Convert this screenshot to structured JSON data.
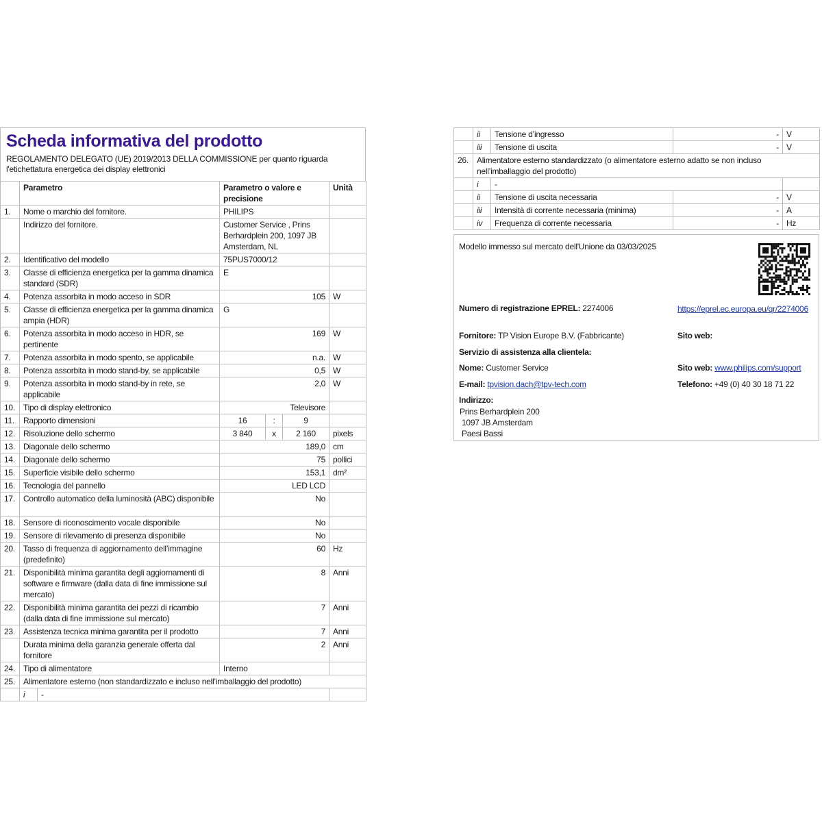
{
  "title": "Scheda informativa del prodotto",
  "subtitle": "REGOLAMENTO DELEGATO (UE) 2019/2013 DELLA COMMISSIONE per quanto riguarda l'etichettatura energetica dei display elettronici",
  "colors": {
    "title": "#3a1a8c",
    "link": "#1f3a9a",
    "border": "#bdbdbd"
  },
  "table_header": {
    "param": "Parametro",
    "value": "Parametro o valore e precisione",
    "unit": "Unità"
  },
  "rows": [
    {
      "n": "1.",
      "p": "Nome o marchio del fornitore.",
      "v": "PHILIPS",
      "u": "",
      "align": "l"
    },
    {
      "n": "",
      "p": "Indirizzo del fornitore.",
      "v": "Customer Service , Prins Berhardplein 200, 1097 JB Amsterdam, NL",
      "u": "",
      "align": "l"
    },
    {
      "n": "2.",
      "p": "Identificativo del modello",
      "v": "75PUS7000/12",
      "u": "",
      "align": "l"
    },
    {
      "n": "3.",
      "p": "Classe di efficienza energetica per la gamma dinamica standard (SDR)",
      "v": "E",
      "u": "",
      "align": "l"
    },
    {
      "n": "4.",
      "p": "Potenza assorbita in modo acceso in SDR",
      "v": "105",
      "u": "W",
      "align": "r"
    },
    {
      "n": "5.",
      "p": "Classe di efficienza energetica per la gamma dinamica ampia (HDR)",
      "v": "G",
      "u": "",
      "align": "l"
    },
    {
      "n": "6.",
      "p": "Potenza assorbita in modo acceso in HDR, se pertinente",
      "v": "169",
      "u": "W",
      "align": "r"
    },
    {
      "n": "7.",
      "p": "Potenza assorbita in modo spento, se applicabile",
      "v": "n.a.",
      "u": "W",
      "align": "r"
    },
    {
      "n": "8.",
      "p": "Potenza assorbita in modo stand-by, se applicabile",
      "v": "0,5",
      "u": "W",
      "align": "r"
    },
    {
      "n": "9.",
      "p": "Potenza assorbita in modo stand-by in rete, se applicabile",
      "v": "2,0",
      "u": "W",
      "align": "r"
    },
    {
      "n": "10.",
      "p": "Tipo di display elettronico",
      "v": "Televisore",
      "u": "",
      "align": "r"
    },
    {
      "n": "11.",
      "p": "Rapporto dimensioni",
      "v": [
        "16",
        ":",
        "9"
      ],
      "u": "",
      "align": "split"
    },
    {
      "n": "12.",
      "p": "Risoluzione dello schermo",
      "v": [
        "3 840",
        "x",
        "2 160"
      ],
      "u": "pixels",
      "align": "split"
    },
    {
      "n": "13.",
      "p": "Diagonale dello schermo",
      "v": "189,0",
      "u": "cm",
      "align": "r"
    },
    {
      "n": "14.",
      "p": "Diagonale dello schermo",
      "v": "75",
      "u": "pollici",
      "align": "r"
    },
    {
      "n": "15.",
      "p": "Superficie visibile dello schermo",
      "v": "153,1",
      "u": "dm²",
      "align": "r"
    },
    {
      "n": "16.",
      "p": "Tecnologia del pannello",
      "v": "LED LCD",
      "u": "",
      "align": "r"
    },
    {
      "n": "17.",
      "p": "Controllo automatico della luminosità (ABC) disponibile",
      "v": "No",
      "u": "",
      "align": "r"
    },
    {
      "n": "18.",
      "p": "Sensore di riconoscimento vocale disponibile",
      "v": "No",
      "u": "",
      "align": "r"
    },
    {
      "n": "19.",
      "p": "Sensore di rilevamento di presenza disponibile",
      "v": "No",
      "u": "",
      "align": "r"
    },
    {
      "n": "20.",
      "p": "Tasso di frequenza di aggiornamento dell’immagine (predefinito)",
      "v": "60",
      "u": "Hz",
      "align": "r"
    },
    {
      "n": "21.",
      "p": "Disponibilità minima garantita degli aggiornamenti di software e firmware (dalla data di fine immissione sul mercato)",
      "v": "8",
      "u": "Anni",
      "align": "r"
    },
    {
      "n": "22.",
      "p": "Disponibilità minima garantita dei pezzi di ricambio (dalla data di fine immissione sul mercato)",
      "v": "7",
      "u": "Anni",
      "align": "r"
    },
    {
      "n": "23.",
      "p": "Assistenza tecnica minima garantita per il prodotto",
      "v": "7",
      "u": "Anni",
      "align": "r"
    },
    {
      "n": "",
      "p": "Durata minima della garanzia generale offerta dal fornitore",
      "v": "2",
      "u": "Anni",
      "align": "r"
    },
    {
      "n": "24.",
      "p": "Tipo di alimentatore",
      "v": "Interno",
      "u": "",
      "align": "l"
    },
    {
      "n": "25.",
      "p": "Alimentatore esterno (non standardizzato e incluso nell’imballaggio del prodotto)",
      "v": null,
      "u": null,
      "align": "span"
    },
    {
      "n": "",
      "p": "-",
      "v": null,
      "u": "",
      "align": "sub",
      "sub": "i"
    }
  ],
  "right_rows": [
    {
      "n": "",
      "sub": "ii",
      "p": "Tensione d’ingresso",
      "v": "-",
      "u": "V"
    },
    {
      "n": "",
      "sub": "iii",
      "p": "Tensione di uscita",
      "v": "-",
      "u": "V"
    },
    {
      "n": "26.",
      "sub": null,
      "p": "Alimentatore esterno standardizzato (o alimentatore esterno adatto se non incluso nell’imballaggio del prodotto)",
      "v": null,
      "u": null
    },
    {
      "n": "",
      "sub": "i",
      "p": "-",
      "v": null,
      "u": ""
    },
    {
      "n": "",
      "sub": "ii",
      "p": "Tensione di uscita necessaria",
      "v": "-",
      "u": "V"
    },
    {
      "n": "",
      "sub": "iii",
      "p": "Intensità di corrente necessaria (minima)",
      "v": "-",
      "u": "A"
    },
    {
      "n": "",
      "sub": "iv",
      "p": "Frequenza di corrente necessaria",
      "v": "-",
      "u": "Hz"
    }
  ],
  "info": {
    "market_date": "Modello immesso sul mercato dell'Unione da 03/03/2025",
    "eprel_label": "Numero di registrazione EPREL:",
    "eprel_number": "2274006",
    "eprel_url": "https://eprel.ec.europa.eu/qr/2274006",
    "supplier_label": "Fornitore:",
    "supplier": "TP Vision Europe B.V. (Fabbricante)",
    "supplier_web_label": "Sito web:",
    "service_heading": "Servizio di assistenza alla clientela:",
    "name_label": "Nome:",
    "name": "Customer Service",
    "web_label": "Sito web:",
    "web": "www.philips.com/support",
    "email_label": "E-mail:",
    "email": "tpvision.dach@tpv-tech.com",
    "phone_label": "Telefono:",
    "phone": "+49 (0) 40 30 18 71 22",
    "address_label": "Indirizzo:",
    "address_lines": [
      "Prins Berhardplein 200",
      "1097 JB Amsterdam",
      "Paesi Bassi"
    ],
    "qr_icon": "qr-code-icon"
  }
}
